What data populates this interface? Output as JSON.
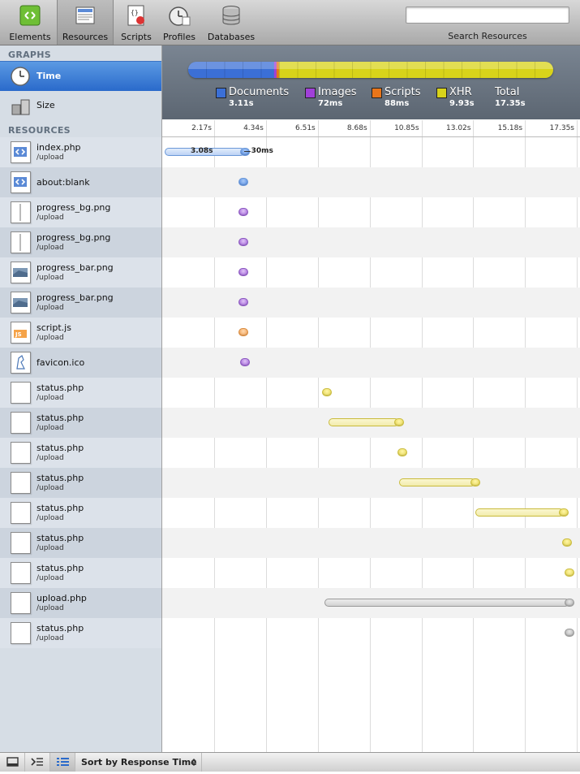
{
  "toolbar": {
    "buttons": [
      {
        "label": "Elements",
        "icon": "elements-icon"
      },
      {
        "label": "Resources",
        "icon": "resources-icon",
        "selected": true
      },
      {
        "label": "Scripts",
        "icon": "scripts-icon"
      },
      {
        "label": "Profiles",
        "icon": "profiles-icon"
      },
      {
        "label": "Databases",
        "icon": "databases-icon"
      }
    ],
    "search_label": "Search Resources",
    "search_value": ""
  },
  "sidebar": {
    "graphs_title": "GRAPHS",
    "graphs": [
      {
        "label": "Time",
        "icon": "clock-icon",
        "selected": true
      },
      {
        "label": "Size",
        "icon": "weights-icon",
        "selected": false
      }
    ],
    "resources_title": "RESOURCES",
    "resources": [
      {
        "name": "index.php",
        "sub": "/upload",
        "type": "document"
      },
      {
        "name": "about:blank",
        "sub": "",
        "type": "document"
      },
      {
        "name": "progress_bg.png",
        "sub": "/upload",
        "type": "image-bg"
      },
      {
        "name": "progress_bg.png",
        "sub": "/upload",
        "type": "image-bg"
      },
      {
        "name": "progress_bar.png",
        "sub": "/upload",
        "type": "image-bar"
      },
      {
        "name": "progress_bar.png",
        "sub": "/upload",
        "type": "image-bar"
      },
      {
        "name": "script.js",
        "sub": "/upload",
        "type": "script"
      },
      {
        "name": "favicon.ico",
        "sub": "",
        "type": "favicon"
      },
      {
        "name": "status.php",
        "sub": "/upload",
        "type": "xhr"
      },
      {
        "name": "status.php",
        "sub": "/upload",
        "type": "xhr"
      },
      {
        "name": "status.php",
        "sub": "/upload",
        "type": "xhr"
      },
      {
        "name": "status.php",
        "sub": "/upload",
        "type": "xhr"
      },
      {
        "name": "status.php",
        "sub": "/upload",
        "type": "xhr"
      },
      {
        "name": "status.php",
        "sub": "/upload",
        "type": "xhr"
      },
      {
        "name": "status.php",
        "sub": "/upload",
        "type": "xhr"
      },
      {
        "name": "upload.php",
        "sub": "/upload",
        "type": "other"
      },
      {
        "name": "status.php",
        "sub": "/upload",
        "type": "other"
      }
    ]
  },
  "summary": {
    "legend": [
      {
        "name": "Documents",
        "value": "3.11s",
        "color": "#3b6fd6"
      },
      {
        "name": "Images",
        "value": "72ms",
        "color": "#a040d8"
      },
      {
        "name": "Scripts",
        "value": "88ms",
        "color": "#e8751a"
      },
      {
        "name": "XHR",
        "value": "9.93s",
        "color": "#d8d31a"
      },
      {
        "name": "Total",
        "value": "17.35s",
        "color": ""
      }
    ],
    "segments": [
      {
        "category": "Documents",
        "seconds": 3.11,
        "color": "#3b6fd6"
      },
      {
        "category": "Images",
        "seconds": 0.072,
        "color": "#a040d8"
      },
      {
        "category": "Scripts",
        "seconds": 0.088,
        "color": "#e8751a"
      },
      {
        "category": "XHR",
        "seconds": 9.93,
        "color": "#d8d31a"
      }
    ]
  },
  "timeline": {
    "max": 17.35,
    "ticks": [
      "2.17s",
      "4.34s",
      "6.51s",
      "8.68s",
      "10.85s",
      "13.02s",
      "15.18s",
      "17.35s"
    ],
    "tick_values": [
      2.17,
      4.34,
      6.51,
      8.68,
      10.85,
      13.02,
      15.18,
      17.35
    ],
    "index_latency_label": "3.08s",
    "index_download_label": "30ms",
    "rows": [
      {
        "start": 0.1,
        "end": 3.45,
        "color": "blue",
        "has_bar": true
      },
      {
        "start": 3.4,
        "end": 3.4,
        "color": "blue",
        "has_bar": false
      },
      {
        "start": 3.4,
        "end": 3.4,
        "color": "purple",
        "has_bar": false
      },
      {
        "start": 3.4,
        "end": 3.4,
        "color": "purple",
        "has_bar": false
      },
      {
        "start": 3.4,
        "end": 3.4,
        "color": "purple",
        "has_bar": false
      },
      {
        "start": 3.4,
        "end": 3.4,
        "color": "purple",
        "has_bar": false
      },
      {
        "start": 3.4,
        "end": 3.4,
        "color": "orange",
        "has_bar": false
      },
      {
        "start": 3.45,
        "end": 3.45,
        "color": "purple",
        "has_bar": false
      },
      {
        "start": 6.9,
        "end": 6.9,
        "color": "yellow",
        "has_bar": false
      },
      {
        "start": 6.95,
        "end": 9.9,
        "color": "yellow",
        "has_bar": true
      },
      {
        "start": 10.05,
        "end": 10.05,
        "color": "yellow",
        "has_bar": false
      },
      {
        "start": 9.9,
        "end": 13.1,
        "color": "yellow",
        "has_bar": true
      },
      {
        "start": 13.1,
        "end": 16.8,
        "color": "yellow",
        "has_bar": true
      },
      {
        "start": 16.95,
        "end": 16.95,
        "color": "yellow",
        "has_bar": false
      },
      {
        "start": 17.05,
        "end": 17.05,
        "color": "yellow",
        "has_bar": false
      },
      {
        "start": 6.8,
        "end": 17.05,
        "color": "gray",
        "has_bar": true
      },
      {
        "start": 17.05,
        "end": 17.05,
        "color": "gray",
        "has_bar": false
      }
    ]
  },
  "statusbar": {
    "sort_label": "Sort by Response Time",
    "buttons": [
      "dock-icon",
      "console-icon",
      "list-icon"
    ]
  }
}
